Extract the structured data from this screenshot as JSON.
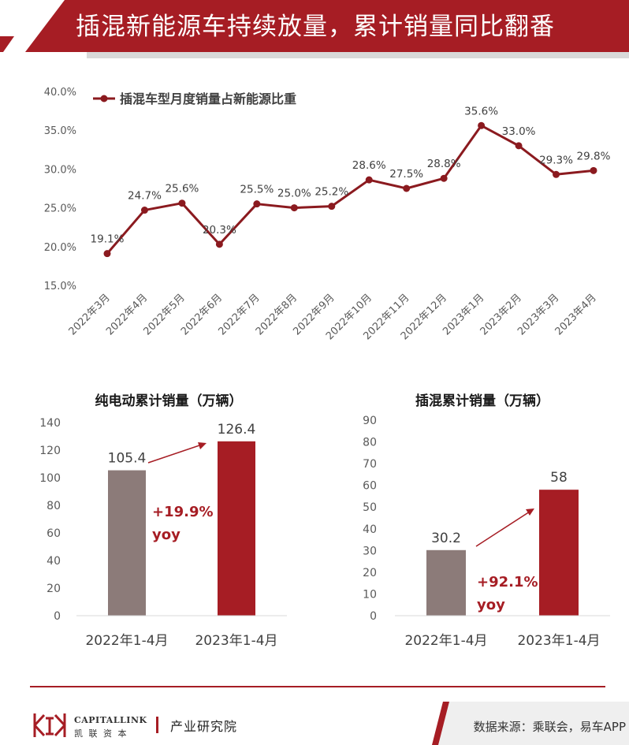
{
  "header": {
    "title": "插混新能源车持续放量，累计销量同比翻番"
  },
  "colors": {
    "brand_red": "#a61d24",
    "line_red": "#8b1a1f",
    "bar_grey": "#8c7b79",
    "bar_red": "#a61d24",
    "grid_grey": "#d9d9d9"
  },
  "chart_data": [
    {
      "type": "line",
      "title": "",
      "legend": {
        "label": "插混车型月度销量占新能源比重",
        "position": "top-left"
      },
      "categories": [
        "2022年3月",
        "2022年4月",
        "2022年5月",
        "2022年6月",
        "2022年7月",
        "2022年8月",
        "2022年9月",
        "2022年10月",
        "2022年11月",
        "2022年12月",
        "2023年1月",
        "2023年2月",
        "2023年3月",
        "2023年4月"
      ],
      "series": [
        {
          "name": "插混车型月度销量占新能源比重",
          "values": [
            19.1,
            24.7,
            25.6,
            20.3,
            25.5,
            25.0,
            25.2,
            28.6,
            27.5,
            28.8,
            35.6,
            33.0,
            29.3,
            29.8
          ],
          "labels": [
            "19.1%",
            "24.7%",
            "25.6%",
            "20.3%",
            "25.5%",
            "25.0%",
            "25.2%",
            "28.6%",
            "27.5%",
            "28.8%",
            "35.6%",
            "33.0%",
            "29.3%",
            "29.8%"
          ]
        }
      ],
      "ylim": [
        15,
        40
      ],
      "yticks": [
        "15.0%",
        "20.0%",
        "25.0%",
        "30.0%",
        "35.0%",
        "40.0%"
      ],
      "grid": false
    },
    {
      "type": "bar",
      "title": "纯电动累计销量（万辆）",
      "categories": [
        "2022年1-4月",
        "2023年1-4月"
      ],
      "values": [
        105.4,
        126.4
      ],
      "labels": [
        "105.4",
        "126.4"
      ],
      "ylim": [
        0,
        140
      ],
      "yticks": [
        "0",
        "20",
        "40",
        "60",
        "80",
        "100",
        "120",
        "140"
      ],
      "annotation": {
        "line1": "+19.9%",
        "line2": "yoy"
      },
      "grid": false
    },
    {
      "type": "bar",
      "title": "插混累计销量（万辆）",
      "categories": [
        "2022年1-4月",
        "2023年1-4月"
      ],
      "values": [
        30.2,
        58
      ],
      "labels": [
        "30.2",
        "58"
      ],
      "ylim": [
        0,
        90
      ],
      "yticks": [
        "0",
        "10",
        "20",
        "30",
        "40",
        "50",
        "60",
        "70",
        "80",
        "90"
      ],
      "annotation": {
        "line1": "+92.1%",
        "line2": "yoy"
      },
      "grid": false
    }
  ],
  "footer": {
    "source": "数据来源：乘联会，易车APP",
    "brand_en": "CAPITALLINK",
    "brand_cn": "凯 联 资 本",
    "dept": "产业研究院",
    "logo_icon": "capitallink-logo-icon"
  }
}
